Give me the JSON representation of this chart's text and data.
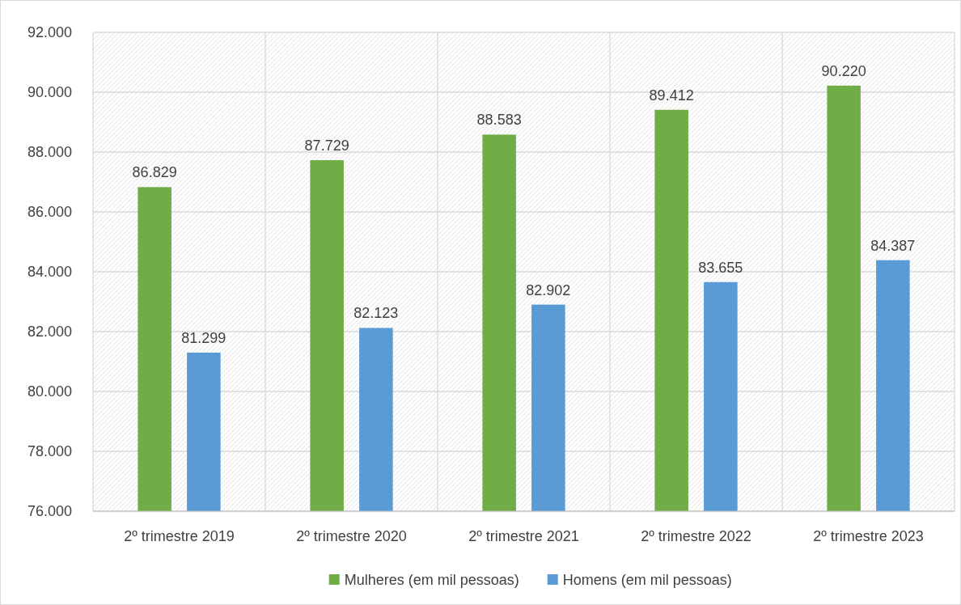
{
  "chart_data": {
    "type": "bar",
    "categories": [
      "2º trimestre 2019",
      "2º trimestre 2020",
      "2º trimestre 2021",
      "2º trimestre 2022",
      "2º trimestre 2023"
    ],
    "series": [
      {
        "name": "Mulheres (em mil pessoas)",
        "color": "#70ad47",
        "values": [
          86829,
          87729,
          88583,
          89412,
          90220
        ],
        "value_labels": [
          "86.829",
          "87.729",
          "88.583",
          "89.412",
          "90.220"
        ]
      },
      {
        "name": "Homens (em mil pessoas)",
        "color": "#5b9bd5",
        "values": [
          81299,
          82123,
          82902,
          83655,
          84387
        ],
        "value_labels": [
          "81.299",
          "82.123",
          "82.902",
          "83.655",
          "84.387"
        ]
      }
    ],
    "ylim": [
      76000,
      92000
    ],
    "yticks": [
      {
        "value": 76000,
        "label": "76.000"
      },
      {
        "value": 78000,
        "label": "78.000"
      },
      {
        "value": 80000,
        "label": "80.000"
      },
      {
        "value": 82000,
        "label": "82.000"
      },
      {
        "value": 84000,
        "label": "84.000"
      },
      {
        "value": 86000,
        "label": "86.000"
      },
      {
        "value": 88000,
        "label": "88.000"
      },
      {
        "value": 90000,
        "label": "90.000"
      },
      {
        "value": 92000,
        "label": "92.000"
      }
    ],
    "grid": true,
    "legend": "bottom"
  }
}
